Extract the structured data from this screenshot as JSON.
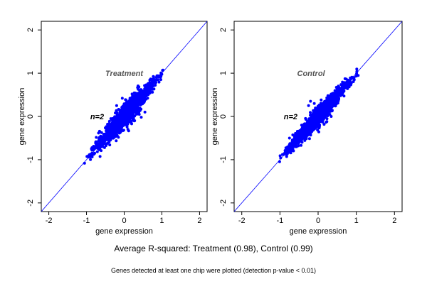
{
  "summary": "Average R-squared: Treatment (0.98), Control (0.99)",
  "footnote": "Genes detected at least one chip were plotted (detection p-value < 0.01)",
  "colors": {
    "points": "#0000ff",
    "identity_line": "#0000ff",
    "frame": "#000000",
    "treatment_label": "#555555",
    "control_label": "#555555",
    "n_label": "#000000"
  },
  "chart_data": [
    {
      "type": "scatter",
      "title": "",
      "xlabel": "gene expression",
      "ylabel": "gene expression",
      "xlim": [
        -2.2,
        2.2
      ],
      "ylim": [
        -2.2,
        2.2
      ],
      "xticks": [
        -2,
        -1,
        0,
        1,
        2
      ],
      "yticks": [
        -2,
        -1,
        0,
        1,
        2
      ],
      "grid": false,
      "reference_line": {
        "slope": 1,
        "intercept": 0
      },
      "annotations": [
        {
          "text": "Treatment",
          "x": -0.5,
          "y": 1.0
        },
        {
          "text": "n=2",
          "x": -0.9,
          "y": 0.0
        }
      ],
      "point_cloud": {
        "x_range": [
          -1.1,
          1.15
        ],
        "spread": 0.1,
        "r_squared": 0.98
      },
      "outliers": [
        {
          "x": -0.05,
          "y": 0.42
        },
        {
          "x": 0.05,
          "y": 0.38
        },
        {
          "x": 0.1,
          "y": -0.3
        },
        {
          "x": 0.4,
          "y": 0.05
        },
        {
          "x": -0.2,
          "y": 0.25
        },
        {
          "x": 0.55,
          "y": 0.1
        }
      ]
    },
    {
      "type": "scatter",
      "title": "",
      "xlabel": "gene expression",
      "ylabel": "gene expression",
      "xlim": [
        -2.2,
        2.2
      ],
      "ylim": [
        -2.2,
        2.2
      ],
      "xticks": [
        -2,
        -1,
        0,
        1,
        2
      ],
      "yticks": [
        -2,
        -1,
        0,
        1,
        2
      ],
      "grid": false,
      "reference_line": {
        "slope": 1,
        "intercept": 0
      },
      "annotations": [
        {
          "text": "Control",
          "x": -0.55,
          "y": 1.0
        },
        {
          "text": "n=2",
          "x": -0.9,
          "y": 0.0
        }
      ],
      "point_cloud": {
        "x_range": [
          -1.1,
          1.15
        ],
        "spread": 0.08,
        "r_squared": 0.99
      },
      "outliers": [
        {
          "x": -0.25,
          "y": 0.25
        },
        {
          "x": -0.2,
          "y": 0.35
        },
        {
          "x": -0.6,
          "y": -0.7
        },
        {
          "x": -0.75,
          "y": -0.5
        },
        {
          "x": 0.15,
          "y": 0.1
        },
        {
          "x": -0.1,
          "y": 0.3
        }
      ]
    }
  ]
}
